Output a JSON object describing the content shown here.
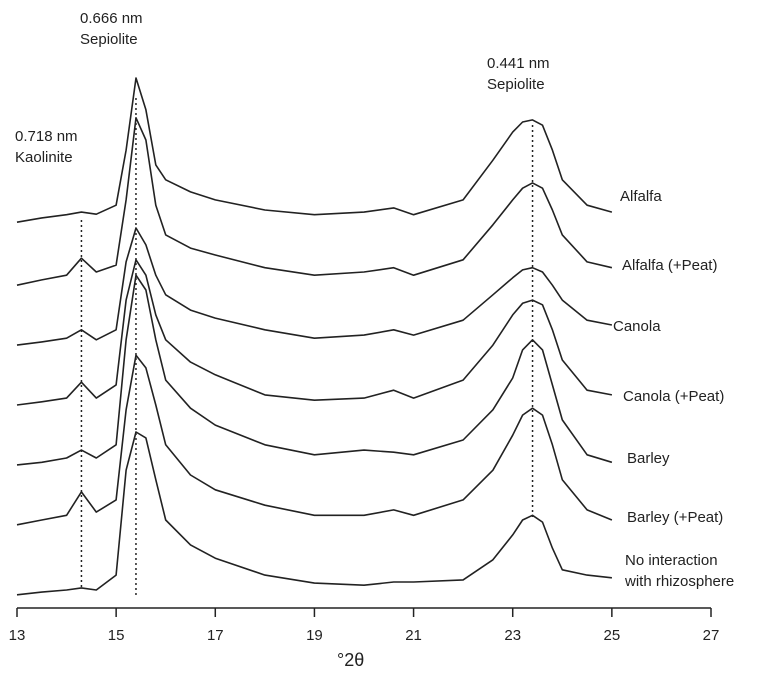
{
  "chart_data": {
    "type": "line",
    "x_label": "°2θ",
    "x": [
      13.0,
      13.5,
      14.0,
      14.3,
      14.6,
      15.0,
      15.2,
      15.4,
      15.6,
      15.8,
      16.0,
      16.5,
      17.0,
      18.0,
      19.0,
      20.0,
      20.6,
      21.0,
      22.0,
      22.6,
      23.0,
      23.2,
      23.4,
      23.6,
      23.8,
      24.0,
      24.5,
      25.0
    ],
    "series": [
      {
        "name": "Alfalfa",
        "color": "#222222",
        "values": [
          72.8,
          73.6,
          74.2,
          74.7,
          74.3,
          76.0,
          86.4,
          100,
          94.0,
          83.6,
          80.8,
          78.5,
          77.0,
          75.1,
          74.2,
          74.7,
          75.5,
          74.2,
          77.0,
          84.5,
          89.8,
          91.7,
          92.1,
          91.1,
          86.4,
          80.8,
          76.0,
          74.7
        ]
      },
      {
        "name": "Alfalfa (+Peat)",
        "color": "#222222",
        "values": [
          60.9,
          61.9,
          62.8,
          66.0,
          63.4,
          64.7,
          77.0,
          92.5,
          88.3,
          76.0,
          70.4,
          67.9,
          66.6,
          64.2,
          62.8,
          63.4,
          64.2,
          62.8,
          65.7,
          72.3,
          77.0,
          79.2,
          80.2,
          79.2,
          75.1,
          70.4,
          65.3,
          64.2
        ]
      },
      {
        "name": "Canola",
        "color": "#222222",
        "values": [
          49.6,
          50.2,
          50.9,
          52.5,
          50.6,
          52.5,
          65.3,
          71.7,
          68.5,
          62.8,
          59.1,
          56.2,
          54.7,
          52.5,
          50.9,
          51.5,
          52.5,
          51.5,
          54.3,
          59.1,
          62.3,
          63.8,
          64.2,
          63.4,
          60.9,
          58.1,
          54.3,
          53.4
        ]
      },
      {
        "name": "Canola (+Peat)",
        "color": "#222222",
        "values": [
          38.3,
          38.9,
          39.6,
          42.6,
          39.6,
          42.1,
          58.1,
          65.7,
          62.8,
          55.3,
          50.6,
          46.4,
          44.0,
          40.2,
          39.2,
          39.6,
          41.1,
          39.6,
          43.0,
          49.6,
          55.3,
          57.5,
          58.1,
          57.2,
          52.5,
          46.8,
          41.1,
          40.2
        ]
      },
      {
        "name": "Barley",
        "color": "#222222",
        "values": [
          27.0,
          27.5,
          28.3,
          29.8,
          28.3,
          30.8,
          50.6,
          62.8,
          60.0,
          50.6,
          43.0,
          37.7,
          34.5,
          30.8,
          28.9,
          29.8,
          29.4,
          28.9,
          31.7,
          37.4,
          43.4,
          48.7,
          50.6,
          48.7,
          42.1,
          35.5,
          28.9,
          27.5
        ]
      },
      {
        "name": "Barley (+Peat)",
        "color": "#222222",
        "values": [
          15.7,
          16.6,
          17.5,
          21.9,
          18.1,
          20.4,
          37.4,
          47.7,
          45.3,
          38.3,
          30.8,
          25.1,
          22.3,
          19.4,
          17.5,
          17.5,
          18.5,
          17.5,
          20.4,
          26.0,
          32.6,
          36.4,
          37.7,
          36.4,
          30.8,
          24.2,
          18.5,
          16.6
        ]
      },
      {
        "name": "No interaction\nwith rhizosphere",
        "color": "#222222",
        "values": [
          2.5,
          3.0,
          3.4,
          3.8,
          3.4,
          6.2,
          26.0,
          33.2,
          32.1,
          24.2,
          16.6,
          11.9,
          9.4,
          6.2,
          4.7,
          4.3,
          4.9,
          4.9,
          5.3,
          9.1,
          13.8,
          16.6,
          17.5,
          16.2,
          11.3,
          7.2,
          6.2,
          5.7
        ]
      }
    ],
    "annotations": [
      {
        "text": "0.666 nm\nSepiolite",
        "x": 15.4
      },
      {
        "text": "0.441 nm\nSepiolite",
        "x": 23.4
      },
      {
        "text": "0.718 nm\nKaolinite",
        "x": 14.3
      }
    ],
    "xlim": [
      13,
      27
    ],
    "xticks": [
      13,
      15,
      17,
      19,
      21,
      23,
      25,
      27
    ],
    "ylim": [
      0,
      100
    ]
  }
}
